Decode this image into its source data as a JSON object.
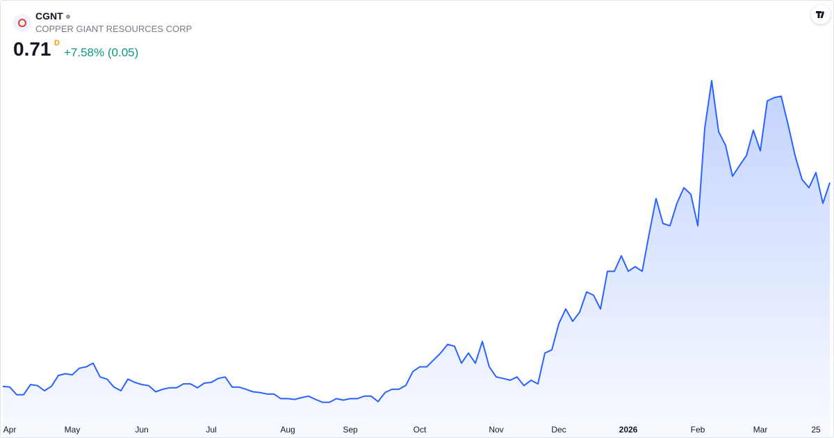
{
  "header": {
    "symbol": "CGNT",
    "name": "COPPER GIANT RESOURCES CORP",
    "price": 0.71,
    "interval": "D",
    "change": "+7.58% (0.05)"
  },
  "chart_data": {
    "type": "area",
    "color": "#2962ff",
    "categories": [
      null,
      "Apr",
      null,
      null,
      null,
      null,
      null,
      null,
      null,
      null,
      "May",
      null,
      null,
      null,
      null,
      null,
      null,
      null,
      null,
      null,
      "Jun",
      null,
      null,
      null,
      null,
      null,
      null,
      null,
      null,
      null,
      "Jul",
      null,
      null,
      null,
      null,
      null,
      null,
      null,
      null,
      null,
      null,
      "Aug",
      null,
      null,
      null,
      null,
      null,
      null,
      null,
      null,
      "Sep",
      null,
      null,
      null,
      null,
      null,
      null,
      null,
      null,
      null,
      "Oct",
      null,
      null,
      null,
      null,
      null,
      null,
      null,
      null,
      null,
      null,
      "Nov",
      null,
      null,
      null,
      null,
      null,
      null,
      null,
      null,
      "Dec",
      null,
      null,
      null,
      null,
      null,
      null,
      null,
      null,
      null,
      "2026",
      null,
      null,
      null,
      null,
      null,
      null,
      null,
      null,
      null,
      "Feb",
      null,
      null,
      null,
      null,
      null,
      null,
      null,
      null,
      "Mar",
      null,
      null,
      null,
      null,
      null,
      null,
      null,
      "25",
      null,
      null
    ],
    "values": [
      0.147,
      0.145,
      0.124,
      0.124,
      0.152,
      0.149,
      0.135,
      0.147,
      0.177,
      0.182,
      0.179,
      0.197,
      0.201,
      0.211,
      0.173,
      0.167,
      0.145,
      0.135,
      0.167,
      0.158,
      0.152,
      0.149,
      0.132,
      0.139,
      0.143,
      0.143,
      0.154,
      0.154,
      0.143,
      0.156,
      0.158,
      0.169,
      0.173,
      0.145,
      0.145,
      0.139,
      0.132,
      0.13,
      0.126,
      0.126,
      0.113,
      0.113,
      0.111,
      0.116,
      0.12,
      0.111,
      0.103,
      0.103,
      0.113,
      0.109,
      0.113,
      0.113,
      0.12,
      0.12,
      0.105,
      0.13,
      0.139,
      0.139,
      0.15,
      0.188,
      0.201,
      0.201,
      0.22,
      0.239,
      0.263,
      0.258,
      0.211,
      0.239,
      0.211,
      0.271,
      0.201,
      0.173,
      0.169,
      0.164,
      0.173,
      0.149,
      0.164,
      0.154,
      0.239,
      0.248,
      0.32,
      0.361,
      0.327,
      0.352,
      0.408,
      0.399,
      0.361,
      0.465,
      0.465,
      0.508,
      0.465,
      0.478,
      0.465,
      0.568,
      0.666,
      0.597,
      0.591,
      0.653,
      0.696,
      0.678,
      0.591,
      0.86,
      0.992,
      0.851,
      0.813,
      0.728,
      0.757,
      0.785,
      0.855,
      0.798,
      0.936,
      0.945,
      0.949,
      0.87,
      0.785,
      0.719,
      0.696,
      0.738,
      0.653,
      0.71
    ],
    "ylim": [
      0.06,
      1.04
    ]
  }
}
